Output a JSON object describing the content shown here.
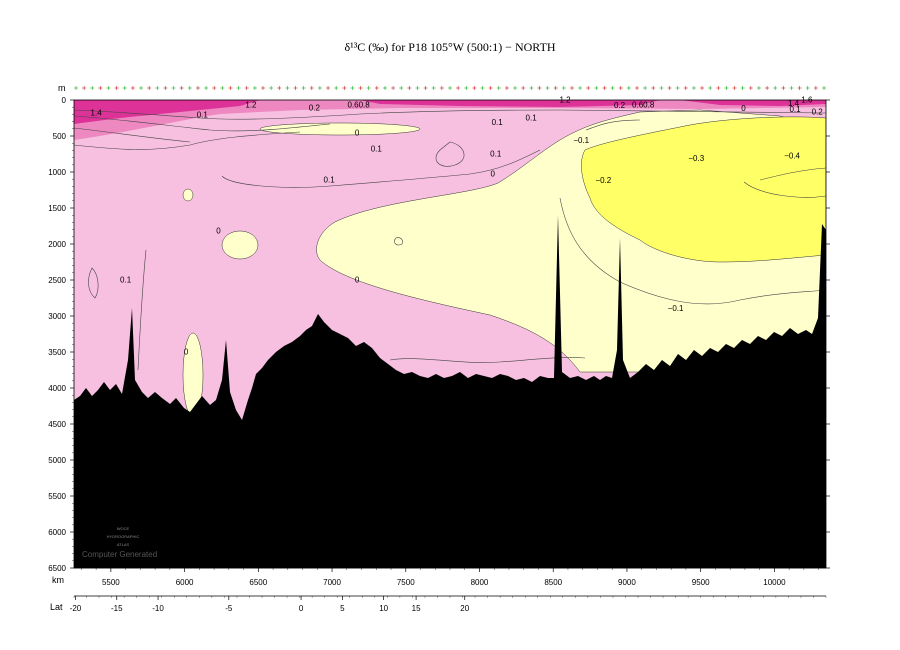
{
  "title": "δ¹³C (‰) for P18 105°W (500:1) − NORTH",
  "chart_data": {
    "type": "heatmap",
    "variable": "δ13C (‰)",
    "xlim_km": [
      5250,
      10350
    ],
    "ylim_m": [
      6500,
      0
    ],
    "y_axis": {
      "label": "m",
      "ticks": [
        0,
        500,
        1000,
        1500,
        2000,
        2500,
        3000,
        3500,
        4000,
        4500,
        5000,
        5500,
        6000,
        6500
      ]
    },
    "x_axis_km": {
      "label": "km",
      "ticks": [
        5500,
        6000,
        6500,
        7000,
        7500,
        8000,
        8500,
        9000,
        9500,
        10000
      ]
    },
    "x_axis_lat": {
      "label": "Lat",
      "ticks": [
        {
          "km": 5260,
          "text": "-20"
        },
        {
          "km": 5540,
          "text": "-15"
        },
        {
          "km": 5820,
          "text": "-10"
        },
        {
          "km": 6300,
          "text": "-5"
        },
        {
          "km": 6790,
          "text": "0"
        },
        {
          "km": 7070,
          "text": "5"
        },
        {
          "km": 7350,
          "text": "10"
        },
        {
          "km": 7570,
          "text": "15"
        },
        {
          "km": 7900,
          "text": "20"
        }
      ]
    },
    "contour_levels": [
      -0.4,
      -0.3,
      -0.2,
      -0.1,
      0,
      0.1,
      0.2,
      1.2,
      1.4,
      1.6
    ],
    "color_scale": [
      {
        "range": "< -0.2",
        "color": "#ffff66"
      },
      {
        "range": "-0.2 to 0",
        "color": "#ffffcc"
      },
      {
        "range": "0 to 1.0",
        "color": "#f7bfe0"
      },
      {
        "range": "1.0 to 1.4",
        "color": "#ee88c0"
      },
      {
        "range": "> 1.4",
        "color": "#dd3399"
      }
    ],
    "contour_labels": [
      {
        "km": 5400,
        "depth": 200,
        "text": "1.4"
      },
      {
        "km": 6450,
        "depth": 90,
        "text": "1.2"
      },
      {
        "km": 6120,
        "depth": 230,
        "text": "0.1"
      },
      {
        "km": 6880,
        "depth": 130,
        "text": "0.2"
      },
      {
        "km": 7180,
        "depth": 90,
        "text": "0.60.8"
      },
      {
        "km": 7170,
        "depth": 480,
        "text": "0"
      },
      {
        "km": 7300,
        "depth": 700,
        "text": "0.1"
      },
      {
        "km": 6980,
        "depth": 1130,
        "text": "0.1"
      },
      {
        "km": 8120,
        "depth": 330,
        "text": "0.1"
      },
      {
        "km": 8350,
        "depth": 270,
        "text": "0.1"
      },
      {
        "km": 8110,
        "depth": 770,
        "text": "0.1"
      },
      {
        "km": 8090,
        "depth": 1050,
        "text": "0"
      },
      {
        "km": 8580,
        "depth": 20,
        "text": "1.2"
      },
      {
        "km": 8690,
        "depth": 580,
        "text": "−0.1"
      },
      {
        "km": 8840,
        "depth": 1140,
        "text": "−0.2"
      },
      {
        "km": 8950,
        "depth": 100,
        "text": "0.2"
      },
      {
        "km": 9110,
        "depth": 90,
        "text": "0.60.8"
      },
      {
        "km": 9470,
        "depth": 830,
        "text": "−0.3"
      },
      {
        "km": 9790,
        "depth": 140,
        "text": "0"
      },
      {
        "km": 10130,
        "depth": 70,
        "text": "1.4"
      },
      {
        "km": 10220,
        "depth": 20,
        "text": "1.6"
      },
      {
        "km": 10140,
        "depth": 150,
        "text": "0.1"
      },
      {
        "km": 10290,
        "depth": 190,
        "text": "0.2"
      },
      {
        "km": 10120,
        "depth": 800,
        "text": "−0.4"
      },
      {
        "km": 6230,
        "depth": 1840,
        "text": "0"
      },
      {
        "km": 5600,
        "depth": 2520,
        "text": "0.1"
      },
      {
        "km": 7170,
        "depth": 2520,
        "text": "0"
      },
      {
        "km": 9330,
        "depth": 2920,
        "text": "−0.1"
      },
      {
        "km": 6010,
        "depth": 3520,
        "text": "0"
      }
    ]
  },
  "watermark": [
    "WOCE",
    "HYDROGRAPHIC",
    "ATLAS"
  ],
  "watermark_subtitle": "Computer Generated"
}
